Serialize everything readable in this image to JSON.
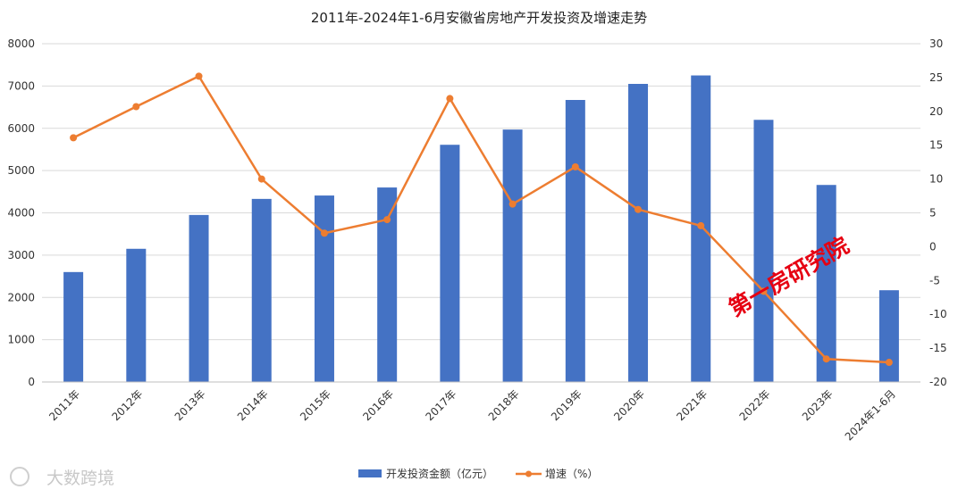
{
  "chart_data": {
    "type": "bar",
    "title": "2011年-2024年1-6月安徽省房地产开发投资及增速走势",
    "categories": [
      "2011年",
      "2012年",
      "2013年",
      "2014年",
      "2015年",
      "2016年",
      "2017年",
      "2018年",
      "2019年",
      "2020年",
      "2021年",
      "2022年",
      "2023年",
      "2024年1-6月"
    ],
    "series": [
      {
        "name": "开发投资金额（亿元）",
        "type": "bar",
        "axis": "left",
        "color": "#4472c4",
        "values": [
          2600,
          3150,
          3950,
          4330,
          4410,
          4600,
          5610,
          5970,
          6670,
          7050,
          7250,
          6200,
          4660,
          2170
        ]
      },
      {
        "name": "增速（%）",
        "type": "line",
        "axis": "right",
        "color": "#ed7d31",
        "values": [
          16.1,
          20.7,
          25.2,
          10.0,
          2.0,
          4.0,
          21.9,
          6.3,
          11.8,
          5.5,
          3.1,
          -6.6,
          -16.6,
          -17.1
        ]
      }
    ],
    "y_left": {
      "ylim": [
        0,
        8000
      ],
      "ticks": [
        "0",
        "1000",
        "2000",
        "3000",
        "4000",
        "5000",
        "6000",
        "7000",
        "8000"
      ]
    },
    "y_right": {
      "ylim": [
        -20,
        30
      ],
      "ticks": [
        "-20",
        "-15",
        "-10",
        "-5",
        "0",
        "5",
        "10",
        "15",
        "20",
        "25",
        "30"
      ]
    },
    "grid": true,
    "legend_position": "bottom"
  },
  "watermarks": {
    "red_stamp": "第一房研究院",
    "gray_logo": "大数跨境"
  },
  "colors": {
    "bar": "#4472c4",
    "line": "#ed7d31",
    "grid": "#d9d9d9",
    "watermark": "#e60012"
  }
}
